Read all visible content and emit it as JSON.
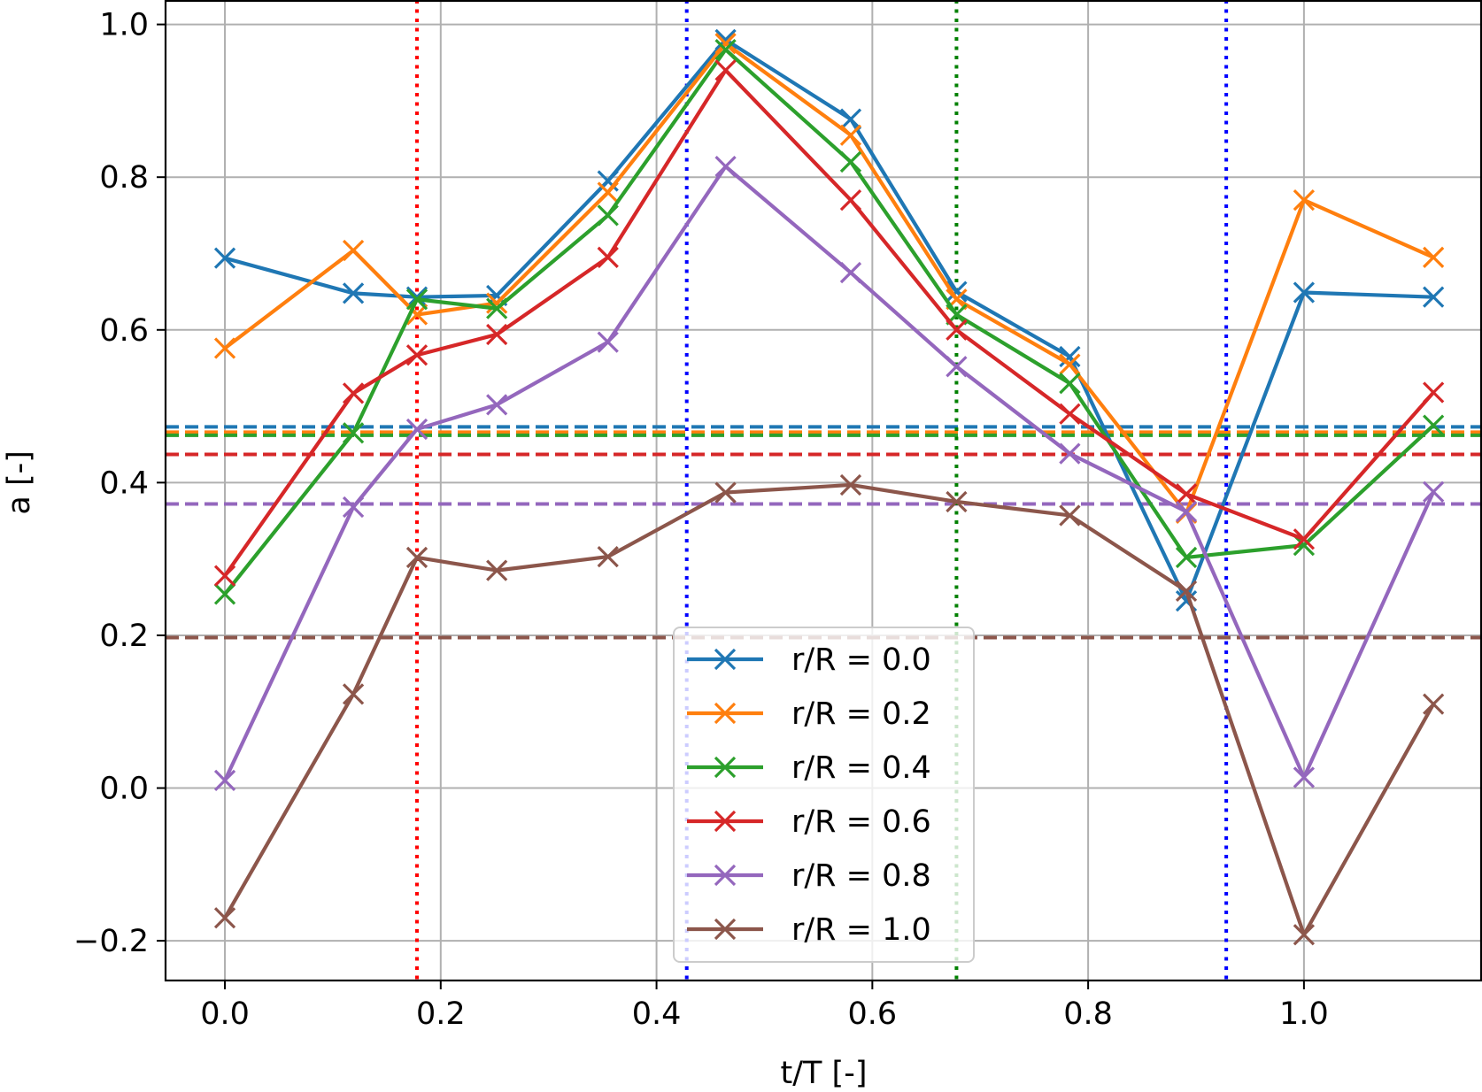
{
  "chart_data": {
    "type": "line",
    "title": "",
    "xlabel": "t/T [-]",
    "ylabel": "a [-]",
    "xlim": [
      -0.055,
      1.165
    ],
    "ylim": [
      -0.252,
      1.032
    ],
    "xticks": [
      0.0,
      0.2,
      0.4,
      0.6,
      0.8,
      1.0
    ],
    "xtick_labels": [
      "0.0",
      "0.2",
      "0.4",
      "0.6",
      "0.8",
      "1.0"
    ],
    "yticks": [
      -0.2,
      0.0,
      0.2,
      0.4,
      0.6,
      0.8,
      1.0
    ],
    "ytick_labels": [
      "−0.2",
      "0.0",
      "0.2",
      "0.4",
      "0.6",
      "0.8",
      "1.0"
    ],
    "grid": true,
    "legend_position": "bottom-center",
    "x": [
      0.0,
      0.119,
      0.178,
      0.252,
      0.355,
      0.464,
      0.58,
      0.678,
      0.783,
      0.891,
      1.0,
      1.12
    ],
    "series": [
      {
        "name": "r/R = 0.0",
        "color": "#1f77b4",
        "mean": 0.473,
        "values": [
          0.694,
          0.648,
          0.643,
          0.645,
          0.795,
          0.98,
          0.876,
          0.65,
          0.565,
          0.245,
          0.649,
          0.643
        ]
      },
      {
        "name": "r/R = 0.2",
        "color": "#ff7f0e",
        "mean": 0.466,
        "values": [
          0.576,
          0.704,
          0.62,
          0.635,
          0.78,
          0.975,
          0.855,
          0.64,
          0.555,
          0.36,
          0.77,
          0.695
        ]
      },
      {
        "name": "r/R = 0.4",
        "color": "#2ca02c",
        "mean": 0.462,
        "values": [
          0.254,
          0.465,
          0.64,
          0.628,
          0.75,
          0.967,
          0.82,
          0.62,
          0.53,
          0.302,
          0.318,
          0.475
        ]
      },
      {
        "name": "r/R = 0.6",
        "color": "#d62728",
        "mean": 0.437,
        "values": [
          0.278,
          0.517,
          0.567,
          0.594,
          0.695,
          0.94,
          0.77,
          0.6,
          0.49,
          0.385,
          0.326,
          0.518
        ]
      },
      {
        "name": "r/R = 0.8",
        "color": "#9467bd",
        "mean": 0.372,
        "values": [
          0.01,
          0.368,
          0.47,
          0.502,
          0.584,
          0.814,
          0.675,
          0.552,
          0.438,
          0.362,
          0.014,
          0.388
        ]
      },
      {
        "name": "r/R = 1.0",
        "color": "#8c564b",
        "mean": 0.197,
        "values": [
          -0.17,
          0.123,
          0.302,
          0.285,
          0.303,
          0.387,
          0.397,
          0.375,
          0.357,
          0.258,
          -0.192,
          0.11
        ]
      }
    ],
    "vertical_lines": [
      {
        "x": 0.178,
        "color": "#ff0000"
      },
      {
        "x": 0.428,
        "color": "#0000ff"
      },
      {
        "x": 0.678,
        "color": "#008000"
      },
      {
        "x": 0.928,
        "color": "#0000ff"
      }
    ]
  }
}
